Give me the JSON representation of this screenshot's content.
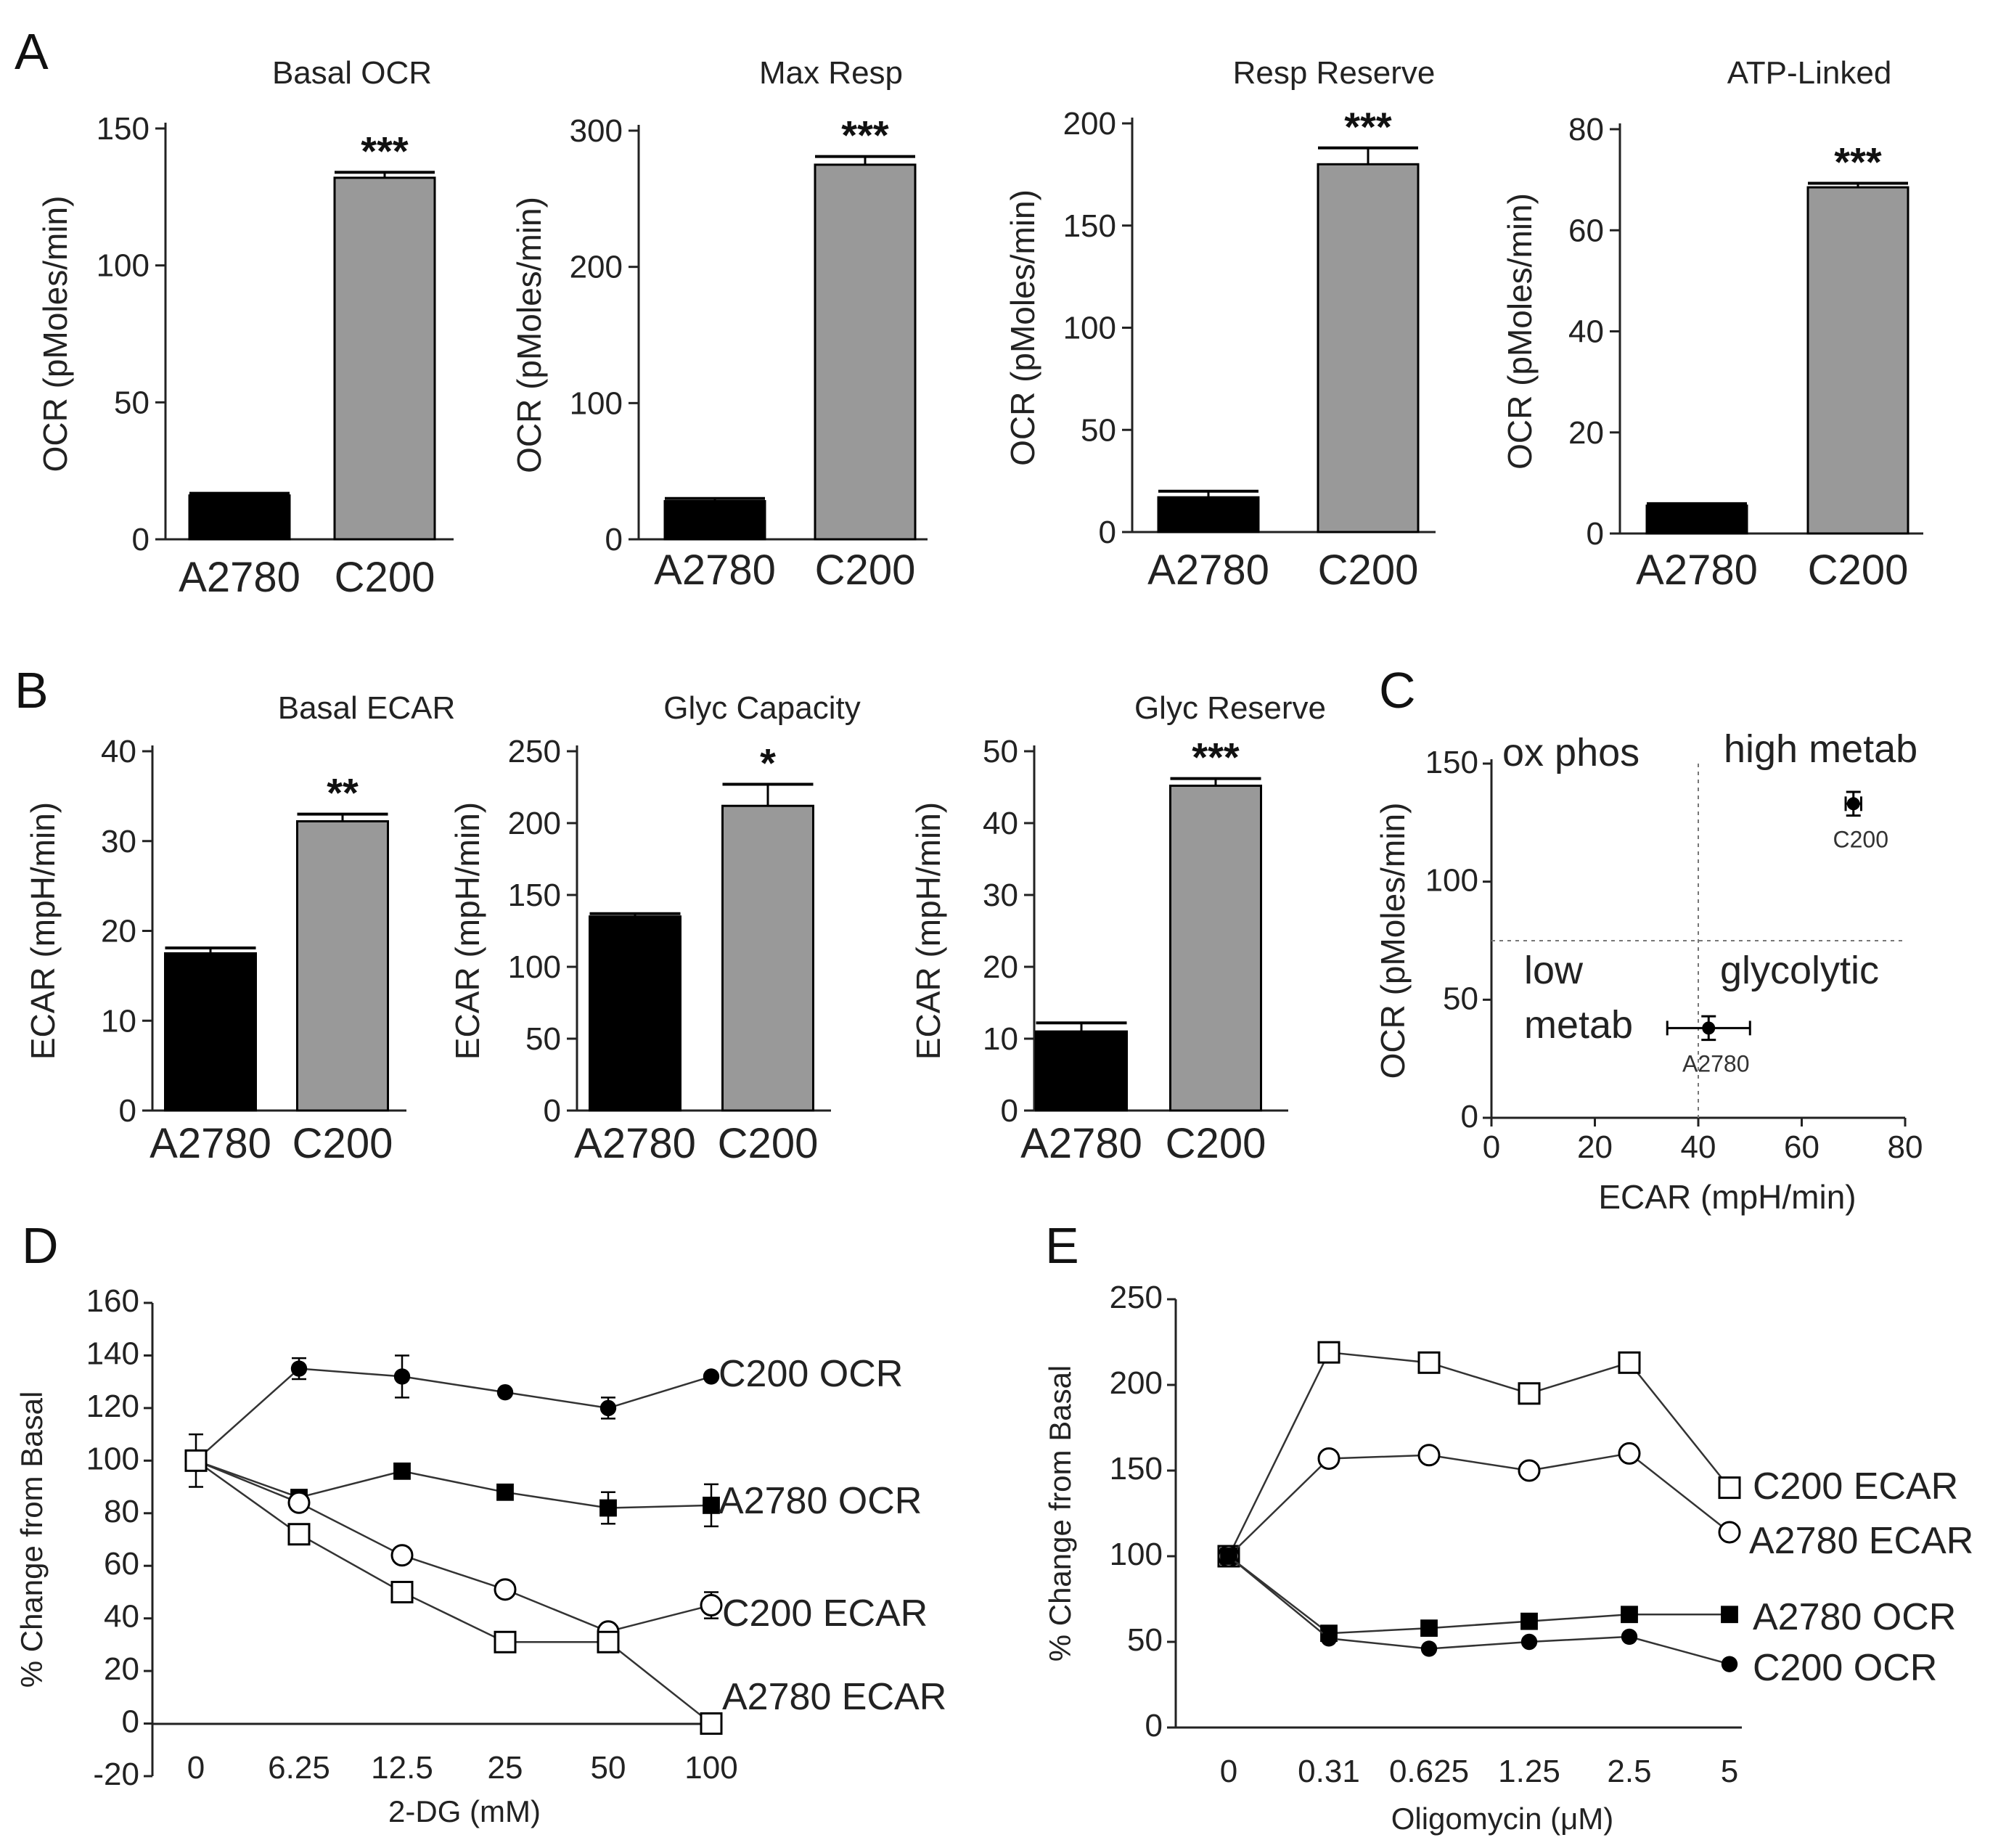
{
  "panels": {
    "A": "A",
    "B": "B",
    "C": "C",
    "D": "D",
    "E": "E"
  },
  "chart_data": [
    {
      "id": "A1",
      "type": "bar",
      "title": "Basal OCR",
      "ylabel": "OCR (pMoles/min)",
      "categories": [
        "A2780",
        "C200"
      ],
      "values": [
        16,
        132
      ],
      "errors": [
        0.8,
        2
      ],
      "colors": [
        "#000000",
        "#999999"
      ],
      "ylim": [
        0,
        150
      ],
      "yticks": [
        0,
        50,
        100,
        150
      ],
      "significance": [
        "",
        "***"
      ]
    },
    {
      "id": "A2",
      "type": "bar",
      "title": "Max Resp",
      "ylabel": "OCR (pMoles/min)",
      "categories": [
        "A2780",
        "C200"
      ],
      "values": [
        28,
        275
      ],
      "errors": [
        2,
        6
      ],
      "colors": [
        "#000000",
        "#999999"
      ],
      "ylim": [
        0,
        300
      ],
      "yticks": [
        0,
        100,
        200,
        300
      ],
      "significance": [
        "",
        "***"
      ]
    },
    {
      "id": "A3",
      "type": "bar",
      "title": "Resp Reserve",
      "ylabel": "OCR (pMoles/min)",
      "categories": [
        "A2780",
        "C200"
      ],
      "values": [
        17,
        180
      ],
      "errors": [
        3,
        8
      ],
      "colors": [
        "#000000",
        "#999999"
      ],
      "ylim": [
        0,
        200
      ],
      "yticks": [
        0,
        50,
        100,
        150,
        200
      ],
      "significance": [
        "",
        "***"
      ]
    },
    {
      "id": "A4",
      "type": "bar",
      "title": "ATP-Linked",
      "ylabel": "OCR (pMoles/min)",
      "categories": [
        "A2780",
        "C200"
      ],
      "values": [
        5.5,
        68.5
      ],
      "errors": [
        0.4,
        0.8
      ],
      "colors": [
        "#000000",
        "#999999"
      ],
      "ylim": [
        0,
        80
      ],
      "yticks": [
        0,
        20,
        40,
        60,
        80
      ],
      "significance": [
        "",
        "***"
      ]
    },
    {
      "id": "B1",
      "type": "bar",
      "title": "Basal ECAR",
      "ylabel": "ECAR (mpH/min)",
      "categories": [
        "A2780",
        "C200"
      ],
      "values": [
        17.5,
        32.2
      ],
      "errors": [
        0.6,
        0.8
      ],
      "colors": [
        "#000000",
        "#999999"
      ],
      "ylim": [
        0,
        40
      ],
      "yticks": [
        0,
        10,
        20,
        30,
        40
      ],
      "significance": [
        "",
        "**"
      ]
    },
    {
      "id": "B2",
      "type": "bar",
      "title": "Glyc Capacity",
      "ylabel": "ECAR (mpH/min)",
      "categories": [
        "A2780",
        "C200"
      ],
      "values": [
        135,
        212
      ],
      "errors": [
        2,
        15
      ],
      "colors": [
        "#000000",
        "#999999"
      ],
      "ylim": [
        0,
        250
      ],
      "yticks": [
        0,
        50,
        100,
        150,
        200,
        250
      ],
      "significance": [
        "",
        "*"
      ]
    },
    {
      "id": "B3",
      "type": "bar",
      "title": "Glyc Reserve",
      "ylabel": "ECAR (mpH/min)",
      "categories": [
        "A2780",
        "C200"
      ],
      "values": [
        11,
        45.2
      ],
      "errors": [
        1.2,
        1
      ],
      "colors": [
        "#000000",
        "#999999"
      ],
      "ylim": [
        0,
        50
      ],
      "yticks": [
        0,
        10,
        20,
        30,
        40,
        50
      ],
      "significance": [
        "",
        "***"
      ]
    },
    {
      "id": "C",
      "type": "scatter",
      "xlabel": "ECAR (mpH/min)",
      "ylabel": "OCR (pMoles/min)",
      "xlim": [
        0,
        80
      ],
      "ylim": [
        0,
        150
      ],
      "xticks": [
        0,
        20,
        40,
        60,
        80
      ],
      "yticks": [
        0,
        50,
        100,
        150
      ],
      "divider_x": 40,
      "divider_y": 75,
      "quadrants": {
        "top_left": "ox phos",
        "top_right": "high metab",
        "bottom_left_1": "low",
        "bottom_left_2": "metab",
        "bottom_right": "glycolytic"
      },
      "points": [
        {
          "label": "C200",
          "x": 70,
          "y": 133,
          "xerr": 1.5,
          "yerr": 5
        },
        {
          "label": "A2780",
          "x": 42,
          "y": 38,
          "xerr": 8,
          "yerr": 5
        }
      ]
    },
    {
      "id": "D",
      "type": "line",
      "xlabel": "2-DG (mM)",
      "ylabel": "% Change from Basal",
      "categories": [
        "0",
        "6.25",
        "12.5",
        "25",
        "50",
        "100"
      ],
      "ylim": [
        -20,
        160
      ],
      "yticks": [
        -20,
        0,
        20,
        40,
        60,
        80,
        100,
        120,
        140,
        160
      ],
      "series": [
        {
          "name": "C200 OCR",
          "marker": "filled-circle",
          "values": [
            100,
            135,
            132,
            126,
            120,
            132
          ],
          "errors": [
            0,
            4,
            8,
            0,
            4,
            0
          ]
        },
        {
          "name": "A2780 OCR",
          "marker": "filled-square",
          "values": [
            100,
            86,
            96,
            88,
            82,
            83
          ],
          "errors": [
            10,
            0,
            0,
            0,
            6,
            8
          ]
        },
        {
          "name": "C200 ECAR",
          "marker": "open-circle",
          "values": [
            100,
            84,
            64,
            51,
            35,
            45
          ],
          "errors": [
            0,
            0,
            0,
            0,
            0,
            5
          ]
        },
        {
          "name": "A2780 ECAR",
          "marker": "open-square",
          "values": [
            100,
            72,
            50,
            31,
            31,
            0
          ],
          "errors": [
            0,
            0,
            0,
            0,
            0,
            0
          ]
        }
      ]
    },
    {
      "id": "E",
      "type": "line",
      "xlabel": "Oligomycin (μM)",
      "ylabel": "% Change from Basal",
      "categories": [
        "0",
        "0.31",
        "0.625",
        "1.25",
        "2.5",
        "5"
      ],
      "ylim": [
        0,
        250
      ],
      "yticks": [
        0,
        50,
        100,
        150,
        200,
        250
      ],
      "series": [
        {
          "name": "C200 ECAR",
          "marker": "open-square",
          "values": [
            100,
            219,
            213,
            195,
            213,
            140
          ]
        },
        {
          "name": "A2780 ECAR",
          "marker": "open-circle",
          "values": [
            100,
            157,
            159,
            150,
            160,
            114
          ]
        },
        {
          "name": "A2780 OCR",
          "marker": "filled-square",
          "values": [
            100,
            55,
            58,
            62,
            66,
            66
          ]
        },
        {
          "name": "C200 OCR",
          "marker": "filled-circle",
          "values": [
            100,
            52,
            46,
            50,
            53,
            37
          ]
        }
      ]
    }
  ]
}
